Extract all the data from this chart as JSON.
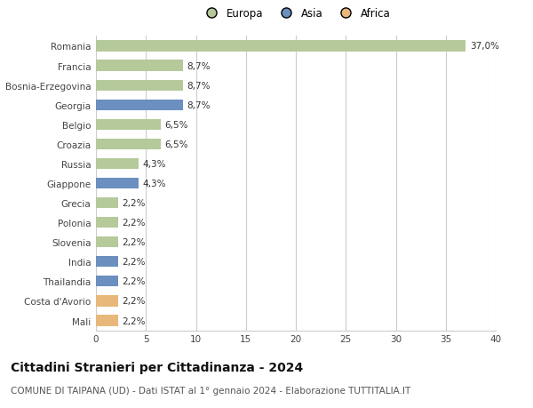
{
  "categories": [
    "Romania",
    "Francia",
    "Bosnia-Erzegovina",
    "Georgia",
    "Belgio",
    "Croazia",
    "Russia",
    "Giappone",
    "Grecia",
    "Polonia",
    "Slovenia",
    "India",
    "Thailandia",
    "Costa d'Avorio",
    "Mali"
  ],
  "values": [
    37.0,
    8.7,
    8.7,
    8.7,
    6.5,
    6.5,
    4.3,
    4.3,
    2.2,
    2.2,
    2.2,
    2.2,
    2.2,
    2.2,
    2.2
  ],
  "labels": [
    "37,0%",
    "8,7%",
    "8,7%",
    "8,7%",
    "6,5%",
    "6,5%",
    "4,3%",
    "4,3%",
    "2,2%",
    "2,2%",
    "2,2%",
    "2,2%",
    "2,2%",
    "2,2%",
    "2,2%"
  ],
  "colors": [
    "#b5c99a",
    "#b5c99a",
    "#b5c99a",
    "#6b8fbe",
    "#b5c99a",
    "#b5c99a",
    "#b5c99a",
    "#6b8fbe",
    "#b5c99a",
    "#b5c99a",
    "#b5c99a",
    "#6b8fbe",
    "#6b8fbe",
    "#e8b87a",
    "#e8b87a"
  ],
  "legend_labels": [
    "Europa",
    "Asia",
    "Africa"
  ],
  "legend_colors": [
    "#b5c99a",
    "#6b8fbe",
    "#e8b87a"
  ],
  "title": "Cittadini Stranieri per Cittadinanza - 2024",
  "subtitle": "COMUNE DI TAIPANA (UD) - Dati ISTAT al 1° gennaio 2024 - Elaborazione TUTTITALIA.IT",
  "xlim": [
    0,
    40
  ],
  "xticks": [
    0,
    5,
    10,
    15,
    20,
    25,
    30,
    35,
    40
  ],
  "bg_color": "#ffffff",
  "bar_height": 0.55,
  "grid_color": "#cccccc",
  "title_fontsize": 10,
  "subtitle_fontsize": 7.5,
  "label_fontsize": 7.5,
  "tick_fontsize": 7.5,
  "legend_fontsize": 8.5
}
